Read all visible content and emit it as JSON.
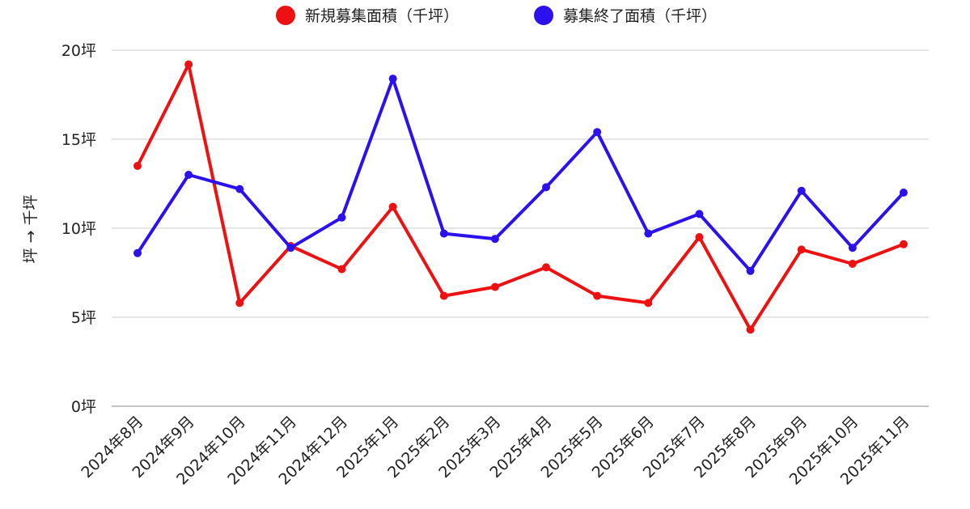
{
  "chart_data": {
    "type": "line",
    "title": "",
    "xlabel": "",
    "ylabel": "坪 → 千坪",
    "ylim": [
      0,
      20
    ],
    "yticks": [
      0,
      5,
      10,
      15,
      20
    ],
    "ytick_labels": [
      "0坪",
      "5坪",
      "10坪",
      "15坪",
      "20坪"
    ],
    "grid": true,
    "legend_position": "top-center",
    "categories": [
      "2024年8月",
      "2024年9月",
      "2024年10月",
      "2024年11月",
      "2024年12月",
      "2025年1月",
      "2025年2月",
      "2025年3月",
      "2025年4月",
      "2025年5月",
      "2025年6月",
      "2025年7月",
      "2025年8月",
      "2025年9月",
      "2025年10月",
      "2025年11月"
    ],
    "series": [
      {
        "name": "新規募集面積（千坪）",
        "color": "#ee1111",
        "values": [
          13.5,
          19.2,
          5.8,
          9.0,
          7.7,
          11.2,
          6.2,
          6.7,
          7.8,
          6.2,
          5.8,
          9.5,
          4.3,
          8.8,
          8.0,
          9.1
        ]
      },
      {
        "name": "募集終了面積（千坪）",
        "color": "#2b11ee",
        "values": [
          8.6,
          13.0,
          12.2,
          8.9,
          10.6,
          18.4,
          9.7,
          9.4,
          12.3,
          15.4,
          9.7,
          10.8,
          7.6,
          12.1,
          8.9,
          12.0
        ]
      }
    ]
  }
}
